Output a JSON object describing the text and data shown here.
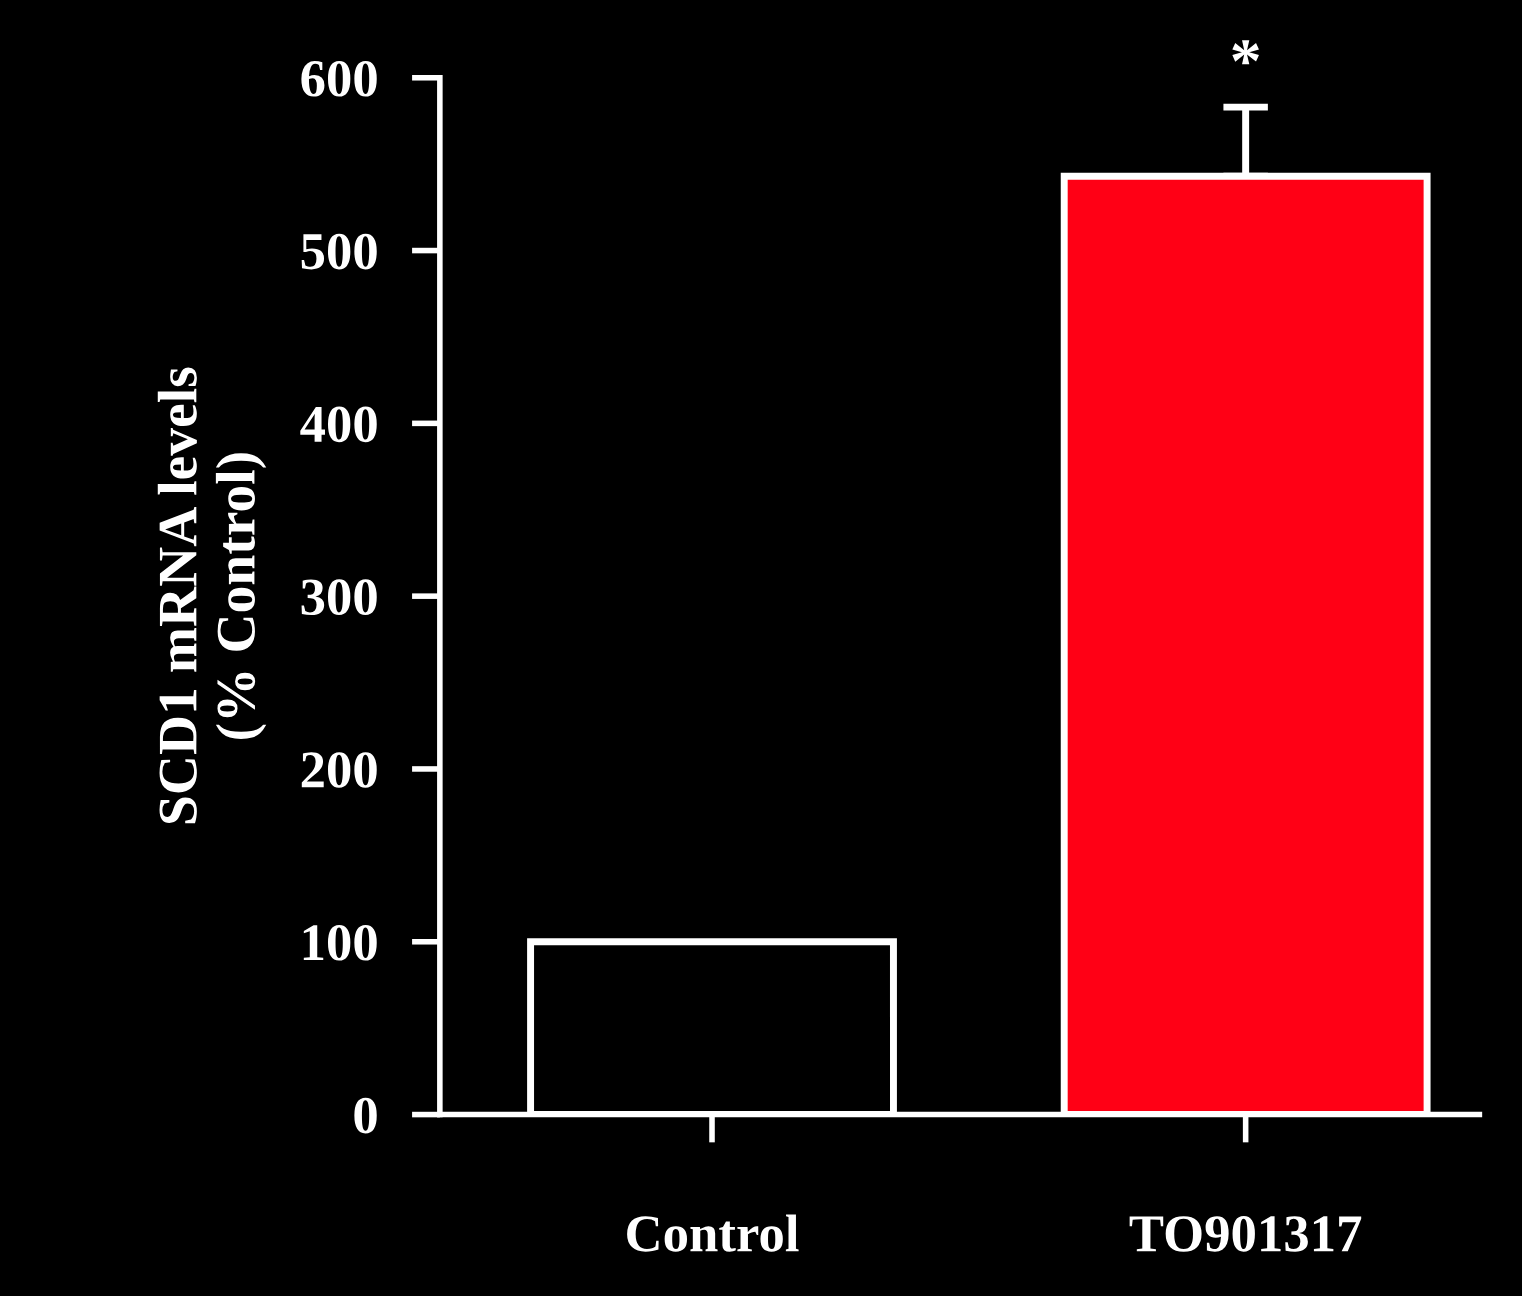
{
  "chart_data": {
    "type": "bar",
    "ylabel": "SCD1 mRNA levels\n(% Control)",
    "categories": [
      "Control",
      "TO901317"
    ],
    "values": [
      100,
      543
    ],
    "colors": [
      "#000000",
      "#ff0015"
    ],
    "errors": [
      null,
      [
        543,
        583
      ]
    ],
    "ylim": [
      0,
      600
    ],
    "yticks": [
      0,
      100,
      200,
      300,
      400,
      500,
      600
    ],
    "grid": false,
    "legend": false,
    "annotations": [
      "*"
    ]
  }
}
